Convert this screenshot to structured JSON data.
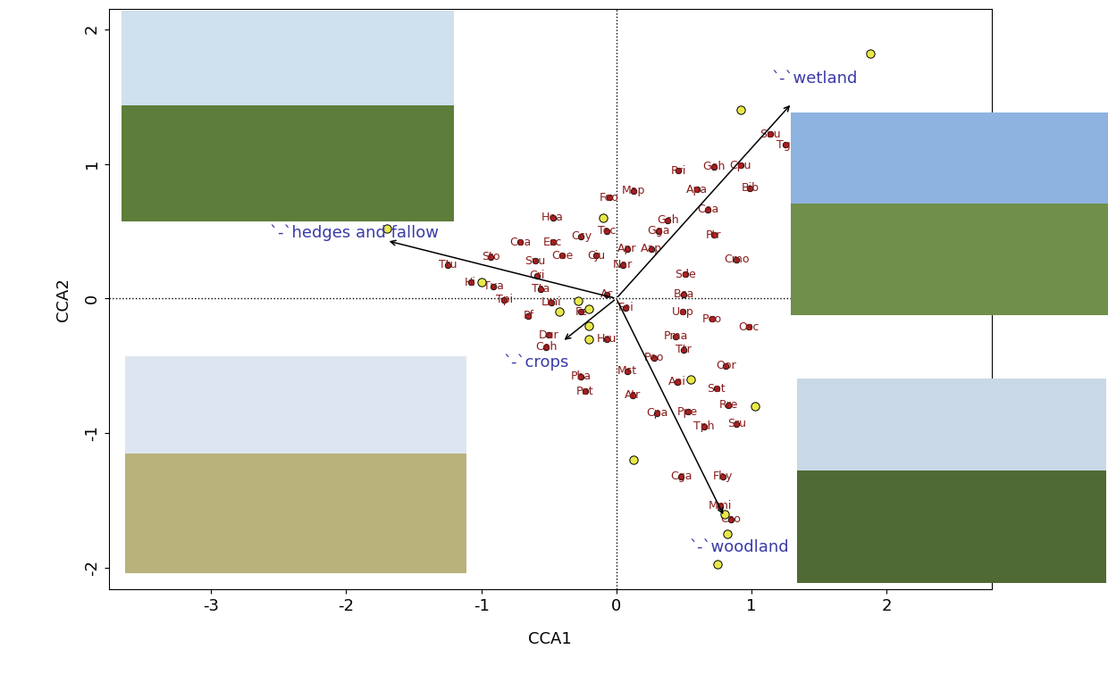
{
  "chart_data": {
    "type": "scatter",
    "xlabel": "CCA1",
    "ylabel": "CCA2",
    "xlim": [
      -3.76,
      2.78
    ],
    "ylim": [
      -2.16,
      2.15
    ],
    "xticks": [
      -3,
      -2,
      -1,
      0,
      1,
      2
    ],
    "yticks": [
      -2,
      -1,
      0,
      1,
      2
    ],
    "species": {
      "color": "#b22222",
      "labels": [
        "Sau",
        "Tgl",
        "Cpu",
        "Bib",
        "Rri",
        "Geh",
        "Apa",
        "Cea",
        "Ptr",
        "Cmo",
        "Sde",
        "Bca",
        "Gch",
        "Gga",
        "Aap",
        "Apr",
        "Nar",
        "Tec",
        "Cju",
        "Ccy",
        "Feo",
        "Map",
        "Hea",
        "Cea",
        "Esc",
        "Cae",
        "Svu",
        "Sto",
        "Ttu",
        "Cri",
        "Hi",
        "Tva",
        "Tta",
        "Tpi",
        "Lmi",
        "Ac",
        "Fe",
        "Fei",
        "Uep",
        "Pco",
        "Osc",
        "Pma",
        "Ttr",
        "Oor",
        "Sat",
        "Rre",
        "Sru",
        "Ani",
        "Peo",
        "Mst",
        "Atr",
        "Cpa",
        "Ppe",
        "Tph",
        "Cga",
        "Fhy",
        "Mmi",
        "Cso",
        "Pf",
        "Dur",
        "Ceh",
        "Hru",
        "Pha",
        "Pat"
      ],
      "x": [
        1.14,
        1.25,
        0.92,
        0.99,
        0.46,
        0.72,
        0.6,
        0.68,
        0.72,
        0.89,
        0.51,
        0.5,
        0.38,
        0.31,
        0.26,
        0.08,
        0.05,
        -0.07,
        -0.15,
        -0.26,
        -0.05,
        0.13,
        -0.47,
        -0.71,
        -0.47,
        -0.4,
        -0.6,
        -0.93,
        -1.25,
        -0.59,
        -1.08,
        -0.91,
        -0.56,
        -0.83,
        -0.48,
        -0.07,
        -0.26,
        0.07,
        0.49,
        0.71,
        0.98,
        0.44,
        0.5,
        0.81,
        0.74,
        0.83,
        0.89,
        0.45,
        0.28,
        0.08,
        0.12,
        0.3,
        0.53,
        0.65,
        0.48,
        0.79,
        0.77,
        0.85,
        -0.65,
        -0.5,
        -0.52,
        -0.07,
        -0.26,
        -0.23
      ],
      "y": [
        1.22,
        1.14,
        0.99,
        0.82,
        0.95,
        0.98,
        0.81,
        0.66,
        0.47,
        0.29,
        0.18,
        0.03,
        0.58,
        0.5,
        0.37,
        0.37,
        0.25,
        0.5,
        0.32,
        0.46,
        0.75,
        0.8,
        0.6,
        0.42,
        0.42,
        0.32,
        0.28,
        0.31,
        0.25,
        0.17,
        0.12,
        0.09,
        0.07,
        -0.01,
        -0.03,
        0.03,
        -0.1,
        -0.07,
        -0.1,
        -0.15,
        -0.21,
        -0.28,
        -0.38,
        -0.5,
        -0.67,
        -0.79,
        -0.93,
        -0.62,
        -0.44,
        -0.54,
        -0.72,
        -0.85,
        -0.84,
        -0.95,
        -1.32,
        -1.32,
        -1.54,
        -1.64,
        -0.13,
        -0.27,
        -0.36,
        -0.3,
        -0.58,
        -0.69
      ]
    },
    "sites": {
      "color": "#e8e84a",
      "x": [
        1.88,
        0.92,
        -0.1,
        -1.7,
        -1.0,
        -0.28,
        -0.2,
        -0.42,
        -0.2,
        -0.2,
        0.55,
        1.03,
        0.13,
        0.8,
        0.82,
        0.75
      ],
      "y": [
        1.82,
        1.4,
        0.6,
        0.52,
        0.12,
        -0.02,
        -0.08,
        -0.1,
        -0.2,
        -0.3,
        -0.6,
        -0.8,
        -1.2,
        -1.6,
        -1.75,
        -1.97
      ]
    },
    "vectors": [
      {
        "label": "`-`wetland",
        "x": 1.3,
        "y": 1.45
      },
      {
        "label": "`-`hedges and fallow",
        "x": -1.7,
        "y": 0.43
      },
      {
        "label": "`-`crops",
        "x": -0.4,
        "y": -0.32
      },
      {
        "label": "`-`woodland",
        "x": 0.8,
        "y": -1.62
      }
    ],
    "vector_color": "#3a3aa8"
  }
}
